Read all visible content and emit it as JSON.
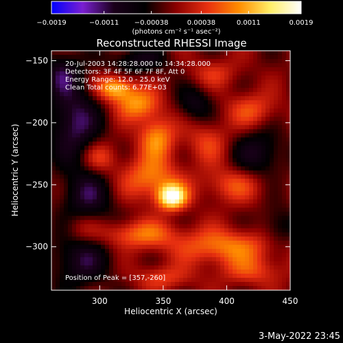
{
  "chart_data": {
    "type": "heatmap",
    "title": "Reconstructed RHESSI Image",
    "xlabel": "Heliocentric X (arcsec)",
    "ylabel": "Heliocentric Y (arcsec)",
    "xlim": [
      262,
      450
    ],
    "ylim": [
      -335,
      -142
    ],
    "x_ticks": [
      300,
      350,
      400,
      450
    ],
    "x_tick_labels": [
      "300",
      "350",
      "400",
      "450"
    ],
    "y_ticks": [
      -150,
      -200,
      -250,
      -300
    ],
    "y_tick_labels": [
      "−150",
      "−200",
      "−250",
      "−300"
    ],
    "colorbar": {
      "range": [
        -0.0019,
        0.0019
      ],
      "ticks": [
        -0.0019,
        -0.0011,
        -0.00038,
        0.00038,
        0.0011,
        0.0019
      ],
      "tick_labels": [
        "−0.0019",
        "−0.0011",
        "−0.00038",
        "0.00038",
        "0.0011",
        "0.0019"
      ],
      "label": "(photons cm⁻² s⁻¹ asec⁻²)",
      "colors": [
        "#0000ff",
        "#7a1fd1",
        "#1a001a",
        "#000000",
        "#8b0000",
        "#e83010",
        "#ff8c00",
        "#ffee66",
        "#ffffff"
      ]
    },
    "info_lines": [
      "20-Jul-2003 14:28:28.000 to 14:34:28.000",
      "Detectors: 3F 4F 5F 6F 7F 8F, Att 0",
      "Energy Range: 12.0 - 25.0 keV",
      "Clean     Total counts: 6.77E+03"
    ],
    "peak_label": "Position of Peak = [357,-260]",
    "peak": [
      357,
      -260
    ],
    "sources": [
      {
        "x": 357,
        "y": -260,
        "amp": 1.0,
        "sx": 8,
        "sy": 7
      },
      {
        "x": 340,
        "y": -245,
        "amp": 0.5,
        "sx": 16,
        "sy": 12
      },
      {
        "x": 312,
        "y": -172,
        "amp": 0.7,
        "sx": 10,
        "sy": 7
      },
      {
        "x": 330,
        "y": -185,
        "amp": 0.55,
        "sx": 12,
        "sy": 9
      },
      {
        "x": 345,
        "y": -212,
        "amp": 0.55,
        "sx": 10,
        "sy": 12
      },
      {
        "x": 300,
        "y": -228,
        "amp": 0.35,
        "sx": 10,
        "sy": 9
      },
      {
        "x": 330,
        "y": -290,
        "amp": 0.45,
        "sx": 22,
        "sy": 8
      },
      {
        "x": 400,
        "y": -300,
        "amp": 0.5,
        "sx": 28,
        "sy": 10
      },
      {
        "x": 405,
        "y": -250,
        "amp": 0.35,
        "sx": 18,
        "sy": 10
      },
      {
        "x": 385,
        "y": -215,
        "amp": 0.3,
        "sx": 12,
        "sy": 12
      },
      {
        "x": 420,
        "y": -190,
        "amp": 0.35,
        "sx": 14,
        "sy": 10
      },
      {
        "x": 420,
        "y": -320,
        "amp": 0.3,
        "sx": 18,
        "sy": 8
      },
      {
        "x": 285,
        "y": -285,
        "amp": 0.25,
        "sx": 10,
        "sy": 10
      },
      {
        "x": 350,
        "y": -325,
        "amp": 0.3,
        "sx": 16,
        "sy": 7
      },
      {
        "x": 390,
        "y": -160,
        "amp": 0.25,
        "sx": 14,
        "sy": 8
      },
      {
        "x": 280,
        "y": -200,
        "amp": -0.55,
        "sx": 14,
        "sy": 22
      },
      {
        "x": 290,
        "y": -260,
        "amp": -0.45,
        "sx": 14,
        "sy": 16
      },
      {
        "x": 285,
        "y": -310,
        "amp": -0.45,
        "sx": 16,
        "sy": 16
      },
      {
        "x": 330,
        "y": -150,
        "amp": -0.35,
        "sx": 16,
        "sy": 8
      },
      {
        "x": 425,
        "y": -225,
        "amp": -0.4,
        "sx": 14,
        "sy": 14
      },
      {
        "x": 375,
        "y": -185,
        "amp": -0.35,
        "sx": 10,
        "sy": 10
      },
      {
        "x": 440,
        "y": -285,
        "amp": -0.3,
        "sx": 10,
        "sy": 12
      },
      {
        "x": 270,
        "y": -160,
        "amp": -0.4,
        "sx": 10,
        "sy": 12
      }
    ]
  },
  "footer": {
    "date": "3-May-2022 23:45"
  }
}
